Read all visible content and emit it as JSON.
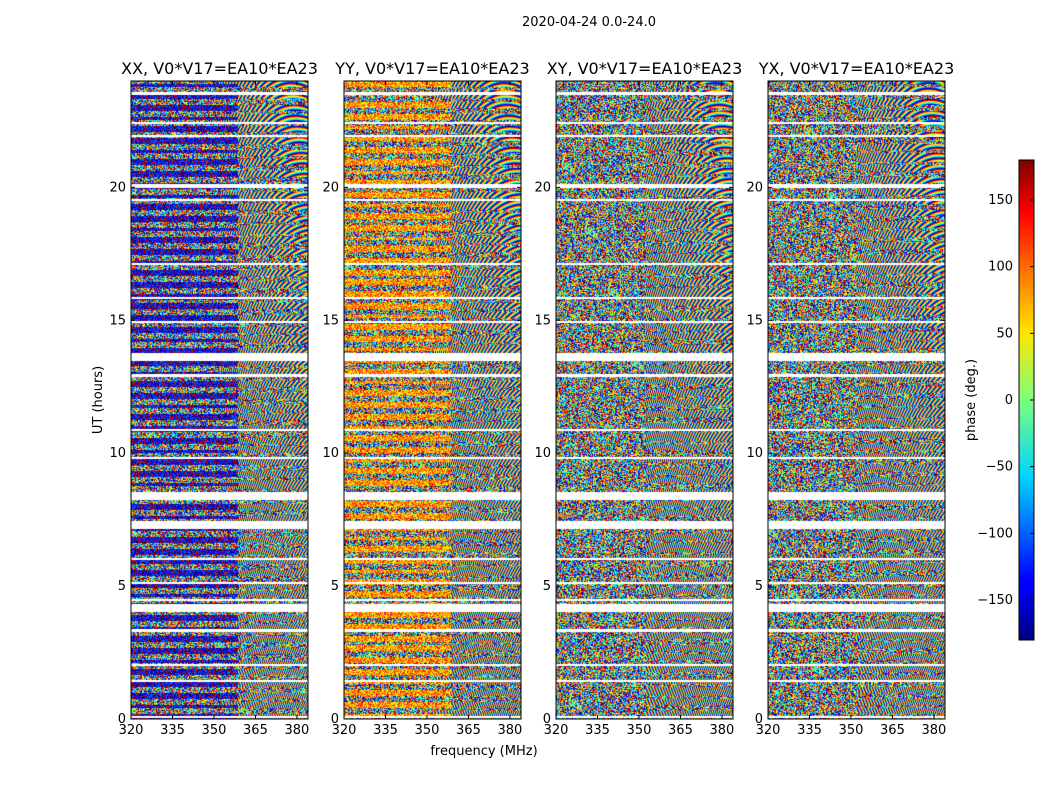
{
  "suptitle": "2020-04-24 0.0-24.0",
  "chart_data": {
    "type": "heatmap",
    "xlabel": "frequency (MHz)",
    "ylabel": "UT (hours)",
    "xlim": [
      320,
      384
    ],
    "ylim": [
      0,
      24
    ],
    "xticks": [
      320,
      335,
      350,
      365,
      380
    ],
    "yticks": [
      0,
      5,
      10,
      15,
      20
    ],
    "panels": [
      {
        "title": "XX, V0*V17=EA10*EA23",
        "bias": -150
      },
      {
        "title": "YY, V0*V17=EA10*EA23",
        "bias": 80
      },
      {
        "title": "XY, V0*V17=EA10*EA23",
        "bias": 0
      },
      {
        "title": "YX, V0*V17=EA10*EA23",
        "bias": 0
      }
    ],
    "flagged_hours": [
      [
        0.05,
        0.15
      ],
      [
        1.4,
        1.5
      ],
      [
        2.0,
        2.08
      ],
      [
        3.3,
        3.4
      ],
      [
        4.05,
        4.35
      ],
      [
        4.45,
        4.55
      ],
      [
        5.1,
        5.18
      ],
      [
        6.0,
        6.08
      ],
      [
        7.15,
        7.45
      ],
      [
        8.25,
        8.55
      ],
      [
        9.8,
        9.88
      ],
      [
        10.85,
        10.93
      ],
      [
        12.9,
        13.0
      ],
      [
        13.5,
        13.8
      ],
      [
        14.9,
        14.98
      ],
      [
        15.8,
        15.88
      ],
      [
        17.1,
        17.18
      ],
      [
        19.5,
        19.58
      ],
      [
        20.0,
        20.15
      ],
      [
        21.9,
        22.0
      ],
      [
        22.4,
        22.48
      ],
      [
        23.5,
        23.6
      ]
    ],
    "colorbar": {
      "label": "phase (deg.)",
      "range": [
        -180,
        180
      ],
      "ticks": [
        150,
        100,
        50,
        0,
        -50,
        -100,
        -150
      ],
      "tick_labels": [
        "150",
        "100",
        "50",
        "0",
        "−50",
        "−100",
        "−150"
      ],
      "colormap": "jet"
    }
  }
}
